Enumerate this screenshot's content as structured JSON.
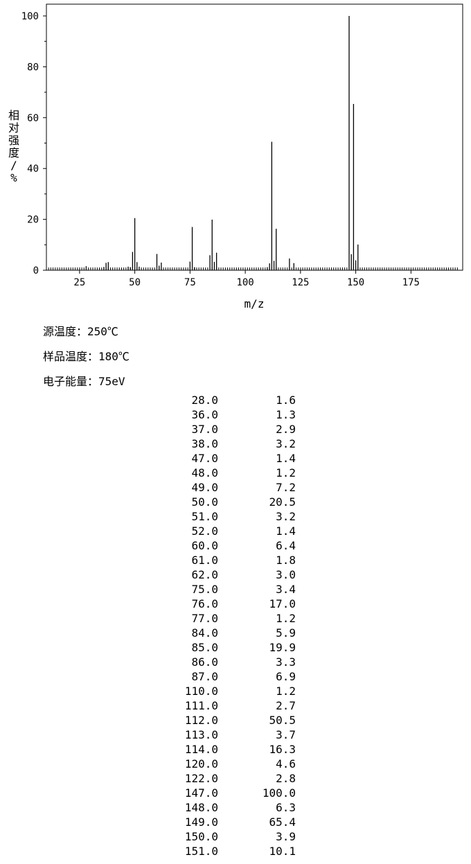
{
  "chart_data": {
    "type": "bar",
    "xlabel": "m/z",
    "ylabel": "相对强度/%",
    "xlim": [
      10,
      196
    ],
    "ylim": [
      0,
      100
    ],
    "xticks": [
      25,
      50,
      75,
      100,
      125,
      150,
      175
    ],
    "yticks": [
      0,
      20,
      40,
      60,
      80,
      100
    ],
    "grid": false,
    "bar_color": "#000000",
    "x": [
      28.0,
      36.0,
      37.0,
      38.0,
      47.0,
      48.0,
      49.0,
      50.0,
      51.0,
      52.0,
      60.0,
      61.0,
      62.0,
      75.0,
      76.0,
      77.0,
      84.0,
      85.0,
      86.0,
      87.0,
      110.0,
      111.0,
      112.0,
      113.0,
      114.0,
      120.0,
      122.0,
      147.0,
      148.0,
      149.0,
      150.0,
      151.0
    ],
    "values": [
      1.6,
      1.3,
      2.9,
      3.2,
      1.4,
      1.2,
      7.2,
      20.5,
      3.2,
      1.4,
      6.4,
      1.8,
      3.0,
      3.4,
      17.0,
      1.2,
      5.9,
      19.9,
      3.3,
      6.9,
      1.2,
      2.7,
      50.5,
      3.7,
      16.3,
      4.6,
      2.8,
      100.0,
      6.3,
      65.4,
      3.9,
      10.1
    ]
  },
  "conditions": [
    {
      "label": "源温度：",
      "value": "250℃"
    },
    {
      "label": "样品温度：",
      "value": "180℃"
    },
    {
      "label": "电子能量：",
      "value": "75eV"
    }
  ],
  "peak_table": [
    {
      "mz": "28.0",
      "abundance": "1.6"
    },
    {
      "mz": "36.0",
      "abundance": "1.3"
    },
    {
      "mz": "37.0",
      "abundance": "2.9"
    },
    {
      "mz": "38.0",
      "abundance": "3.2"
    },
    {
      "mz": "47.0",
      "abundance": "1.4"
    },
    {
      "mz": "48.0",
      "abundance": "1.2"
    },
    {
      "mz": "49.0",
      "abundance": "7.2"
    },
    {
      "mz": "50.0",
      "abundance": "20.5"
    },
    {
      "mz": "51.0",
      "abundance": "3.2"
    },
    {
      "mz": "52.0",
      "abundance": "1.4"
    },
    {
      "mz": "60.0",
      "abundance": "6.4"
    },
    {
      "mz": "61.0",
      "abundance": "1.8"
    },
    {
      "mz": "62.0",
      "abundance": "3.0"
    },
    {
      "mz": "75.0",
      "abundance": "3.4"
    },
    {
      "mz": "76.0",
      "abundance": "17.0"
    },
    {
      "mz": "77.0",
      "abundance": "1.2"
    },
    {
      "mz": "84.0",
      "abundance": "5.9"
    },
    {
      "mz": "85.0",
      "abundance": "19.9"
    },
    {
      "mz": "86.0",
      "abundance": "3.3"
    },
    {
      "mz": "87.0",
      "abundance": "6.9"
    },
    {
      "mz": "110.0",
      "abundance": "1.2"
    },
    {
      "mz": "111.0",
      "abundance": "2.7"
    },
    {
      "mz": "112.0",
      "abundance": "50.5"
    },
    {
      "mz": "113.0",
      "abundance": "3.7"
    },
    {
      "mz": "114.0",
      "abundance": "16.3"
    },
    {
      "mz": "120.0",
      "abundance": "4.6"
    },
    {
      "mz": "122.0",
      "abundance": "2.8"
    },
    {
      "mz": "147.0",
      "abundance": "100.0"
    },
    {
      "mz": "148.0",
      "abundance": "6.3"
    },
    {
      "mz": "149.0",
      "abundance": "65.4"
    },
    {
      "mz": "150.0",
      "abundance": "3.9"
    },
    {
      "mz": "151.0",
      "abundance": "10.1"
    }
  ]
}
